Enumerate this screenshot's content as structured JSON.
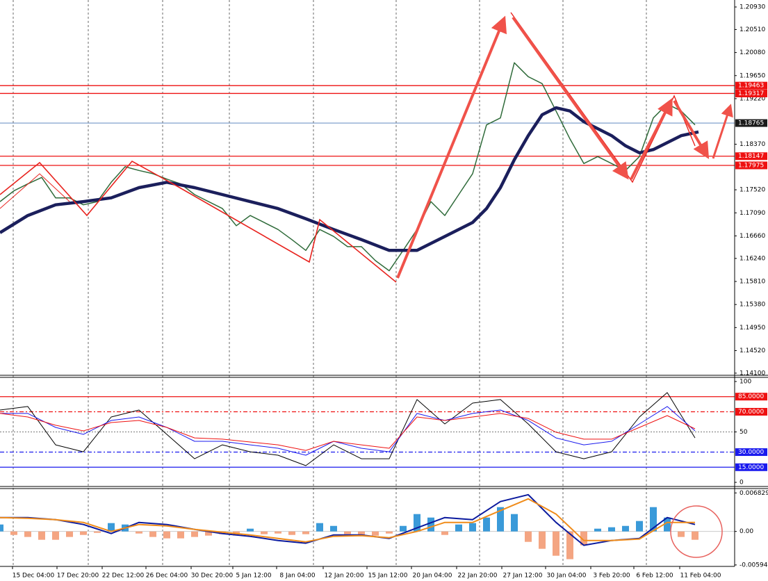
{
  "chart_data": [
    {
      "type": "line",
      "xlim": [
        0,
        1057
      ],
      "xticks": [
        {
          "value": 48,
          "label": "15 Dec 04:00"
        },
        {
          "value": 112,
          "label": "17 Dec 20:00"
        },
        {
          "value": 177,
          "label": "22 Dec 12:00"
        },
        {
          "value": 240,
          "label": "26 Dec 04:00"
        },
        {
          "value": 305,
          "label": "30 Dec 20:00"
        },
        {
          "value": 365,
          "label": "5 Jan 12:00"
        },
        {
          "value": 428,
          "label": "8 Jan 04:00"
        },
        {
          "value": 495,
          "label": "12 Jan 20:00"
        },
        {
          "value": 558,
          "label": "15 Jan 12:00"
        },
        {
          "value": 622,
          "label": "20 Jan 04:00"
        },
        {
          "value": 687,
          "label": "22 Jan 20:00"
        },
        {
          "value": 752,
          "label": "27 Jan 12:00"
        },
        {
          "value": 815,
          "label": "30 Jan 04:00"
        },
        {
          "value": 880,
          "label": "3 Feb 20:00"
        },
        {
          "value": 942,
          "label": "6 Feb 12:00"
        },
        {
          "value": 1008,
          "label": "11 Feb 04:00"
        }
      ],
      "ylim": [
        1.1406,
        1.2106
      ],
      "yticks": [
        {
          "value": 1.2093,
          "label": "1.20930"
        },
        {
          "value": 1.2051,
          "label": "1.20510"
        },
        {
          "value": 1.2008,
          "label": "1.20080"
        },
        {
          "value": 1.1965,
          "label": "1.19650"
        },
        {
          "value": 1.1922,
          "label": "1.19220"
        },
        {
          "value": 1.1837,
          "label": "1.18370"
        },
        {
          "value": 1.1752,
          "label": "1.17520"
        },
        {
          "value": 1.1709,
          "label": "1.17090"
        },
        {
          "value": 1.1666,
          "label": "1.16660"
        },
        {
          "value": 1.1624,
          "label": "1.16240"
        },
        {
          "value": 1.1581,
          "label": "1.15810"
        },
        {
          "value": 1.1538,
          "label": "1.15380"
        },
        {
          "value": 1.1495,
          "label": "1.14950"
        },
        {
          "value": 1.1452,
          "label": "1.14520"
        },
        {
          "value": 1.141,
          "label": "1.14100"
        }
      ],
      "levels": [
        {
          "value": 1.19463,
          "color": "#ee1111",
          "bg": "#ee1111"
        },
        {
          "value": 1.19317,
          "color": "#ee1111",
          "bg": "#ee1111"
        },
        {
          "value": 1.18765,
          "color": "#4a78b8",
          "bg": "#1a1a1a"
        },
        {
          "value": 1.18147,
          "color": "#ee1111",
          "bg": "#ee1111"
        },
        {
          "value": 1.17975,
          "color": "#ee1111",
          "bg": "#ee1111"
        }
      ],
      "series": [
        {
          "color": "#2f6b3a",
          "width": 1.5,
          "x": [
            0,
            20,
            40,
            60,
            80,
            100,
            120,
            140,
            160,
            180,
            200,
            220,
            240,
            260,
            280,
            300,
            320,
            340,
            360,
            380,
            400,
            420,
            440,
            460,
            480,
            500,
            520,
            540,
            560,
            580,
            600,
            620,
            640,
            660,
            680,
            700,
            720,
            740,
            760,
            780,
            800,
            820,
            840,
            860,
            880,
            900,
            920,
            940,
            960,
            980,
            1000
          ],
          "values": [
            1.173,
            1.175,
            1.1763,
            1.1775,
            1.1737,
            1.1737,
            1.1724,
            1.173,
            1.1766,
            1.1795,
            1.1788,
            1.1782,
            1.1772,
            1.1763,
            1.1743,
            1.173,
            1.1717,
            1.1685,
            1.1704,
            1.1691,
            1.1678,
            1.1659,
            1.1639,
            1.1678,
            1.1665,
            1.1646,
            1.1646,
            1.162,
            1.1601,
            1.1639,
            1.1678,
            1.173,
            1.1704,
            1.1743,
            1.1782,
            1.1873,
            1.1886,
            1.1989,
            1.1963,
            1.195,
            1.1899,
            1.1847,
            1.1801,
            1.1814,
            1.1801,
            1.1788,
            1.1814,
            1.1886,
            1.1912,
            1.1899,
            1.1873
          ]
        },
        {
          "color": "#1b1f5c",
          "width": 4.5,
          "x": [
            0,
            40,
            80,
            120,
            160,
            200,
            240,
            280,
            320,
            360,
            400,
            440,
            480,
            520,
            560,
            600,
            640,
            680,
            700,
            720,
            740,
            760,
            780,
            800,
            820,
            840,
            860,
            880,
            900,
            920,
            940,
            960,
            980,
            1005
          ],
          "values": [
            1.1672,
            1.1704,
            1.1724,
            1.173,
            1.1737,
            1.1756,
            1.1766,
            1.1756,
            1.1743,
            1.173,
            1.1717,
            1.1698,
            1.1678,
            1.1659,
            1.1639,
            1.1639,
            1.1665,
            1.1691,
            1.1717,
            1.1756,
            1.1808,
            1.1853,
            1.1892,
            1.1905,
            1.1899,
            1.1879,
            1.1866,
            1.1853,
            1.1834,
            1.1821,
            1.1827,
            1.184,
            1.1853,
            1.186
          ]
        }
      ]
    },
    {
      "type": "line",
      "xlim": [
        0,
        1057
      ],
      "ylim": [
        -4.1,
        104.1
      ],
      "yticks": [
        100,
        50,
        0
      ],
      "levels": [
        {
          "value": 85,
          "label": "85.0000",
          "color": "#ee1111",
          "dash": "none"
        },
        {
          "value": 70,
          "label": "70.0000",
          "color": "#ee1111",
          "dash": "6 3 2 3"
        },
        {
          "value": 30,
          "label": "30.0000",
          "color": "#1a1aee",
          "dash": "6 3 2 3"
        },
        {
          "value": 15,
          "label": "15.0000",
          "color": "#1a1aee",
          "dash": "none"
        }
      ],
      "series": [
        {
          "color": "#000000",
          "width": 1,
          "x": [
            0,
            40,
            80,
            120,
            160,
            200,
            240,
            280,
            320,
            360,
            400,
            440,
            480,
            520,
            560,
            600,
            640,
            680,
            720,
            760,
            800,
            840,
            880,
            920,
            960,
            1000
          ],
          "values": [
            71.7,
            75.2,
            37.2,
            30.3,
            64.8,
            71.7,
            47.6,
            23.4,
            37.2,
            30.3,
            26.9,
            16.6,
            37.2,
            23.4,
            23.4,
            82.1,
            57.9,
            78.6,
            82.1,
            57.9,
            30.3,
            23.4,
            30.3,
            64.8,
            89.0,
            44.1
          ]
        },
        {
          "color": "#1a1aee",
          "width": 1,
          "x": [
            0,
            40,
            80,
            120,
            160,
            200,
            240,
            280,
            320,
            360,
            400,
            440,
            480,
            520,
            560,
            600,
            640,
            680,
            720,
            760,
            800,
            840,
            880,
            920,
            960,
            1000
          ],
          "values": [
            68.3,
            68.3,
            54.5,
            47.6,
            61.4,
            64.8,
            54.5,
            40.7,
            40.7,
            37.2,
            33.8,
            26.9,
            40.7,
            33.8,
            30.3,
            68.3,
            61.4,
            68.3,
            71.7,
            61.4,
            44.1,
            37.2,
            40.7,
            57.9,
            75.2,
            51.0
          ]
        },
        {
          "color": "#ee1111",
          "width": 1,
          "x": [
            0,
            40,
            80,
            120,
            160,
            200,
            240,
            280,
            320,
            360,
            400,
            440,
            480,
            520,
            560,
            600,
            640,
            680,
            720,
            760,
            800,
            840,
            880,
            920,
            960,
            1000
          ],
          "values": [
            68.3,
            64.8,
            56.6,
            51.0,
            59.3,
            61.4,
            54.5,
            44.1,
            42.8,
            40.0,
            37.2,
            31.7,
            40.7,
            37.2,
            33.8,
            64.8,
            61.4,
            64.8,
            68.3,
            63.4,
            49.7,
            42.8,
            42.8,
            54.5,
            66.2,
            53.1
          ]
        }
      ]
    },
    {
      "type": "macd",
      "xlim": [
        0,
        1057
      ],
      "ylim": [
        -0.0062,
        0.0076
      ],
      "yticks": [
        {
          "value": 0.0068298,
          "label": "0.0068298"
        },
        {
          "value": 0,
          "label": "0.00"
        },
        {
          "value": -0.00594,
          "label": "-0.005940"
        }
      ],
      "up_color": "#3a9ad9",
      "down_color": "#f4a582",
      "bars": {
        "x": [
          0,
          20,
          40,
          60,
          80,
          100,
          120,
          140,
          160,
          180,
          200,
          220,
          240,
          260,
          280,
          300,
          320,
          340,
          360,
          380,
          400,
          420,
          440,
          460,
          480,
          500,
          520,
          540,
          560,
          580,
          600,
          620,
          640,
          660,
          680,
          700,
          720,
          740,
          760,
          780,
          800,
          820,
          840,
          860,
          880,
          900,
          920,
          940,
          960,
          980,
          1000
        ],
        "values": [
          0.00123,
          -0.00062,
          -0.00098,
          -0.00148,
          -0.00148,
          -0.00098,
          -0.00062,
          -0.00025,
          0.00148,
          0.00123,
          -0.00037,
          -0.00098,
          -0.00123,
          -0.00123,
          -0.00098,
          -0.00074,
          -0.00049,
          -0.00074,
          0.00049,
          -0.00049,
          -0.00037,
          -0.00062,
          -0.00049,
          0.00148,
          0.00098,
          -0.00049,
          -0.00062,
          -0.00074,
          -0.00037,
          0.00098,
          0.00308,
          0.00246,
          -0.00062,
          0.00123,
          0.00148,
          0.00246,
          0.00431,
          0.00308,
          -0.00185,
          -0.00308,
          -0.00431,
          -0.00492,
          -0.00246,
          0.00049,
          0.00074,
          0.00098,
          0.00185,
          0.00431,
          0.00246,
          -0.00098,
          -0.00148
        ]
      },
      "series": [
        {
          "color": "#0b1a9e",
          "width": 2,
          "x": [
            0,
            40,
            80,
            120,
            160,
            200,
            240,
            280,
            320,
            360,
            400,
            440,
            480,
            520,
            560,
            600,
            640,
            680,
            720,
            760,
            800,
            840,
            880,
            920,
            960,
            1000
          ],
          "values": [
            0.00246,
            0.00246,
            0.00209,
            0.00123,
            -0.00037,
            0.0016,
            0.00123,
            0.00037,
            -0.00037,
            -0.00086,
            -0.0016,
            -0.00209,
            -0.00062,
            -0.00062,
            -0.00123,
            0.00062,
            0.00246,
            0.00209,
            0.00529,
            0.00652,
            0.0016,
            -0.00246,
            -0.0016,
            -0.00123,
            0.00246,
            0.00123
          ]
        },
        {
          "color": "#f08c1a",
          "width": 2,
          "x": [
            0,
            40,
            80,
            120,
            160,
            200,
            240,
            280,
            320,
            360,
            400,
            440,
            480,
            520,
            560,
            600,
            640,
            680,
            720,
            760,
            800,
            840,
            880,
            920,
            960,
            1000
          ],
          "values": [
            0.00246,
            0.00234,
            0.00209,
            0.0016,
            0,
            0.00123,
            0.00098,
            0.00037,
            -0.00012,
            -0.00062,
            -0.00123,
            -0.00185,
            -0.00086,
            -0.00074,
            -0.00111,
            0,
            0.0016,
            0.0016,
            0.00369,
            0.00578,
            0.00308,
            -0.0016,
            -0.0016,
            -0.00135,
            0.0016,
            0.0016
          ]
        }
      ]
    }
  ]
}
